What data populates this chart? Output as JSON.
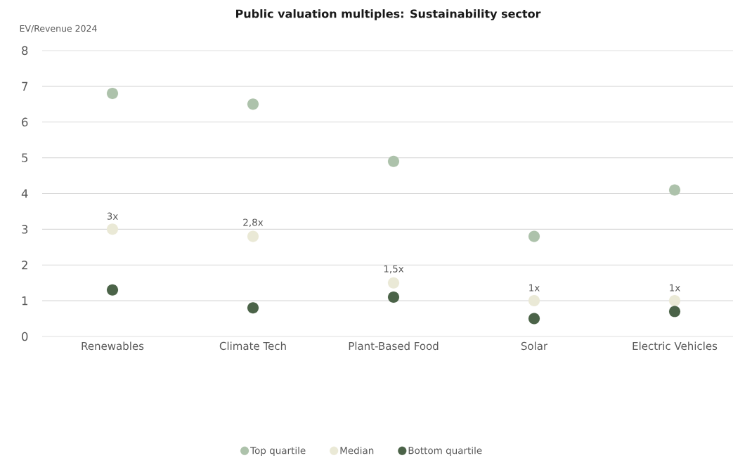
{
  "chart_data": {
    "type": "scatter",
    "title": "Public valuation multiples: Sustainability sector",
    "ylabel": "EV/Revenue 2024",
    "categories": [
      "Renewables",
      "Climate Tech",
      "Plant-Based Food",
      "Solar",
      "Electric Vehicles"
    ],
    "series": [
      {
        "name": "Top quartile",
        "color": "#adc2ab",
        "values": [
          6.8,
          6.5,
          4.9,
          2.8,
          4.1
        ]
      },
      {
        "name": "Median",
        "color": "#eae9d6",
        "values": [
          3,
          2.8,
          1.5,
          1,
          1
        ],
        "value_labels": [
          "3x",
          "2,8x",
          "1,5x",
          "1x",
          "1x"
        ]
      },
      {
        "name": "Bottom quartile",
        "color": "#4b6348",
        "values": [
          1.3,
          0.8,
          1.1,
          0.5,
          0.7
        ]
      }
    ],
    "ylim": [
      0,
      8
    ],
    "yticks": [
      0,
      1,
      2,
      3,
      4,
      5,
      6,
      7,
      8
    ],
    "grid": "y",
    "legend": "bottom",
    "marker": "circle"
  }
}
